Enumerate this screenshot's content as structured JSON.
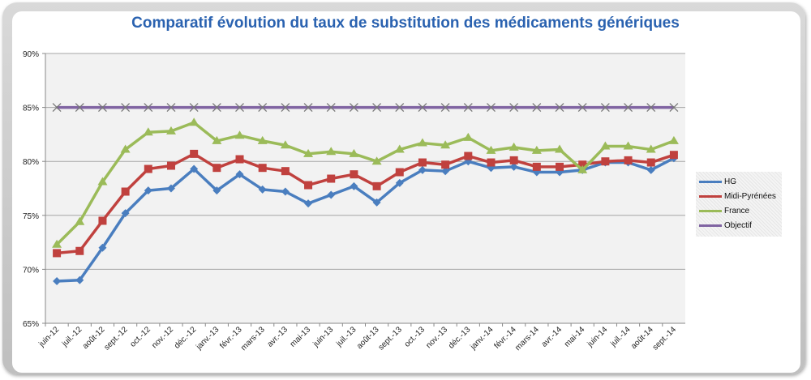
{
  "chart_data": {
    "type": "line",
    "title": "Comparatif évolution du taux de substitution des médicaments génériques",
    "xlabel": "",
    "ylabel": "",
    "ylim": [
      65,
      90
    ],
    "yticks": [
      65,
      70,
      75,
      80,
      85,
      90
    ],
    "ytick_labels": [
      "65%",
      "70%",
      "75%",
      "80%",
      "85%",
      "90%"
    ],
    "grid": true,
    "legend_position": "right",
    "categories": [
      "juin-12",
      "juil.-12",
      "août-12",
      "sept.-12",
      "oct.-12",
      "nov.-12",
      "déc.-12",
      "janv.-13",
      "févr.-13",
      "mars-13",
      "avr.-13",
      "mai-13",
      "juin-13",
      "juil.-13",
      "août-13",
      "sept.-13",
      "oct.-13",
      "nov.-13",
      "déc.-13",
      "janv.-14",
      "févr.-14",
      "mars-14",
      "avr.-14",
      "mai-14",
      "juin-14",
      "juil.-14",
      "août-14",
      "sept.-14"
    ],
    "series": [
      {
        "name": "HG",
        "color": "#4a7ebf",
        "marker": "diamond",
        "values": [
          68.9,
          69.0,
          72.0,
          75.2,
          77.3,
          77.5,
          79.3,
          77.3,
          78.8,
          77.4,
          77.2,
          76.1,
          76.9,
          77.7,
          76.2,
          78.0,
          79.2,
          79.1,
          80.0,
          79.4,
          79.5,
          79.0,
          79.0,
          79.2,
          79.9,
          79.9,
          79.2,
          80.3
        ]
      },
      {
        "name": "Midi-Pyrénées",
        "color": "#c0413e",
        "marker": "square",
        "values": [
          71.5,
          71.7,
          74.5,
          77.2,
          79.3,
          79.6,
          80.7,
          79.4,
          80.2,
          79.4,
          79.1,
          77.8,
          78.4,
          78.8,
          77.7,
          79.0,
          79.9,
          79.7,
          80.5,
          79.9,
          80.1,
          79.5,
          79.5,
          79.7,
          80.0,
          80.1,
          79.9,
          80.6
        ]
      },
      {
        "name": "France",
        "color": "#9bbb59",
        "marker": "triangle",
        "values": [
          72.3,
          74.4,
          78.1,
          81.1,
          82.7,
          82.8,
          83.6,
          81.9,
          82.4,
          81.9,
          81.5,
          80.7,
          80.9,
          80.7,
          80.0,
          81.1,
          81.7,
          81.5,
          82.2,
          81.0,
          81.3,
          81.0,
          81.1,
          79.2,
          81.4,
          81.4,
          81.1,
          81.9
        ]
      },
      {
        "name": "Objectif",
        "color": "#8064a2",
        "marker": "x",
        "values": [
          85,
          85,
          85,
          85,
          85,
          85,
          85,
          85,
          85,
          85,
          85,
          85,
          85,
          85,
          85,
          85,
          85,
          85,
          85,
          85,
          85,
          85,
          85,
          85,
          85,
          85,
          85,
          85
        ]
      }
    ]
  }
}
